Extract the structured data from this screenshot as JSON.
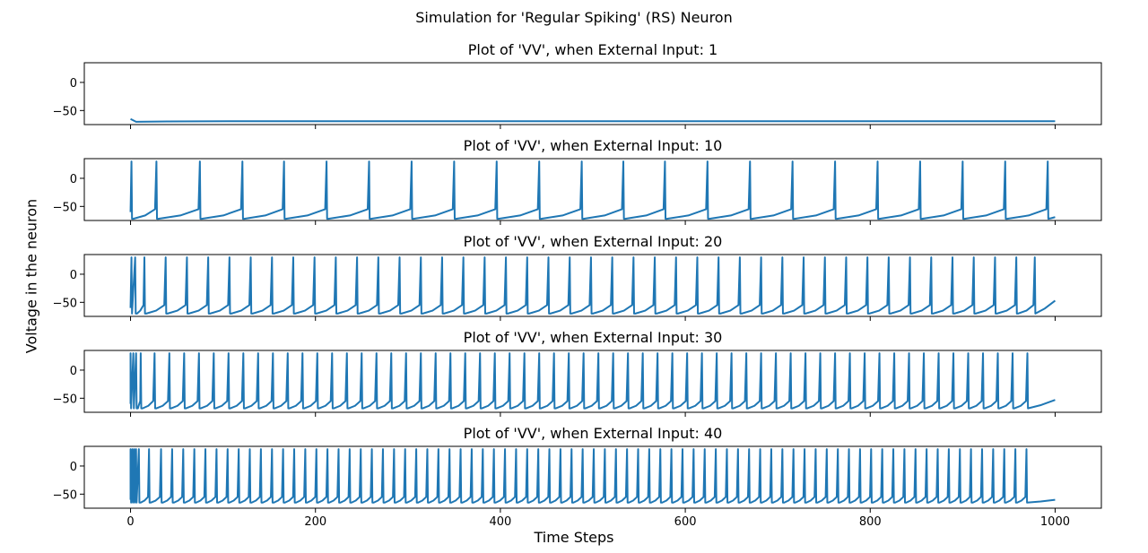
{
  "figure": {
    "title": "Simulation for 'Regular Spiking' (RS) Neuron",
    "xlabel": "Time Steps",
    "ylabel": "Voltage in the neuron"
  },
  "chart_data": [
    {
      "type": "line",
      "title": "Plot of 'VV', when External Input: 1",
      "external_input": 1,
      "xlim": [
        -50,
        1050
      ],
      "ylim": [
        -75,
        35
      ],
      "xticks": [
        0,
        200,
        400,
        600,
        800,
        1000
      ],
      "yticks": [
        0,
        -50
      ],
      "xtick_labels_shown": false,
      "color": "#1f77b4",
      "spike_times": [],
      "curve": {
        "start": -65,
        "dip": -70,
        "settle": -69,
        "end": -69
      }
    },
    {
      "type": "line",
      "title": "Plot of 'VV', when External Input: 10",
      "external_input": 10,
      "xlim": [
        -50,
        1050
      ],
      "ylim": [
        -75,
        35
      ],
      "xticks": [
        0,
        200,
        400,
        600,
        800,
        1000
      ],
      "yticks": [
        0,
        -50
      ],
      "xtick_labels_shown": false,
      "color": "#1f77b4",
      "spike_peak": 30,
      "reset": -72,
      "threshold_rise": -55,
      "spike_times": [
        1,
        28,
        75,
        121,
        166,
        212,
        258,
        304,
        350,
        396,
        442,
        488,
        533,
        578,
        624,
        670,
        716,
        762,
        808,
        854,
        900,
        946,
        992
      ]
    },
    {
      "type": "line",
      "title": "Plot of 'VV', when External Input: 20",
      "external_input": 20,
      "xlim": [
        -50,
        1050
      ],
      "ylim": [
        -75,
        35
      ],
      "xticks": [
        0,
        200,
        400,
        600,
        800,
        1000
      ],
      "yticks": [
        0,
        -50
      ],
      "xtick_labels_shown": false,
      "color": "#1f77b4",
      "spike_peak": 30,
      "reset": -70,
      "threshold_rise": -55,
      "end_value": -47,
      "spike_times": [
        1,
        5,
        15,
        38,
        61,
        84,
        107,
        130,
        153,
        176,
        199,
        222,
        245,
        268,
        291,
        314,
        337,
        360,
        383,
        406,
        429,
        452,
        475,
        498,
        521,
        544,
        567,
        590,
        613,
        636,
        659,
        682,
        705,
        728,
        751,
        774,
        797,
        820,
        843,
        866,
        889,
        912,
        935,
        958,
        978
      ]
    },
    {
      "type": "line",
      "title": "Plot of 'VV', when External Input: 30",
      "external_input": 30,
      "xlim": [
        -50,
        1050
      ],
      "ylim": [
        -75,
        35
      ],
      "xticks": [
        0,
        200,
        400,
        600,
        800,
        1000
      ],
      "yticks": [
        0,
        -50
      ],
      "xtick_labels_shown": false,
      "color": "#1f77b4",
      "spike_peak": 30,
      "reset": -68,
      "threshold_rise": -55,
      "end_value": -53,
      "spike_times": [
        0,
        3,
        6,
        11,
        26,
        42,
        58,
        74,
        90,
        106,
        122,
        138,
        154,
        170,
        186,
        202,
        218,
        234,
        250,
        266,
        282,
        298,
        314,
        330,
        346,
        362,
        378,
        394,
        410,
        426,
        442,
        458,
        474,
        490,
        506,
        522,
        538,
        554,
        570,
        586,
        602,
        618,
        634,
        650,
        666,
        682,
        698,
        714,
        730,
        746,
        762,
        778,
        794,
        810,
        826,
        842,
        858,
        874,
        890,
        906,
        922,
        938,
        954,
        970
      ]
    },
    {
      "type": "line",
      "title": "Plot of 'VV', when External Input: 40",
      "external_input": 40,
      "xlim": [
        -50,
        1050
      ],
      "ylim": [
        -75,
        35
      ],
      "xticks": [
        0,
        200,
        400,
        600,
        800,
        1000
      ],
      "yticks": [
        0,
        -50
      ],
      "xtick_labels_shown": true,
      "color": "#1f77b4",
      "spike_peak": 30,
      "reset": -65,
      "threshold_rise": -55,
      "end_value": -60,
      "spike_times": [
        0,
        2,
        4,
        6,
        9,
        20,
        33,
        45,
        57,
        69,
        81,
        93,
        105,
        117,
        129,
        141,
        153,
        165,
        177,
        189,
        201,
        213,
        225,
        237,
        249,
        261,
        273,
        285,
        297,
        309,
        321,
        333,
        345,
        357,
        369,
        381,
        393,
        405,
        417,
        429,
        441,
        453,
        465,
        477,
        489,
        501,
        513,
        525,
        537,
        549,
        561,
        573,
        585,
        597,
        609,
        621,
        633,
        645,
        657,
        669,
        681,
        693,
        705,
        717,
        729,
        741,
        753,
        765,
        777,
        789,
        801,
        813,
        825,
        837,
        849,
        861,
        873,
        885,
        897,
        909,
        921,
        933,
        945,
        957,
        969
      ]
    }
  ]
}
